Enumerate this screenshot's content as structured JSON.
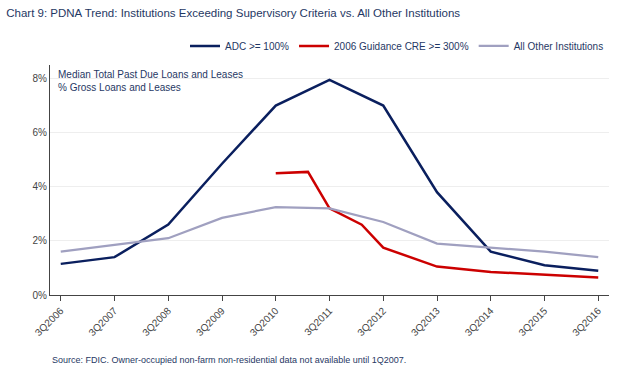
{
  "chart_data": {
    "type": "line",
    "title": "Chart 9: PDNA Trend: Institutions Exceeding Supervisory Criteria vs. All Other Institutions",
    "ylabel": [
      "Median Total Past Due Loans and Leases",
      "% Gross Loans and Leases"
    ],
    "annotations": [
      "Source: FDIC. Owner-occupied non-farm non-residential data not available until 1Q2007."
    ],
    "xlim": [
      -0.2,
      10.2
    ],
    "xticks": [
      {
        "value": 0,
        "label": "3Q2006"
      },
      {
        "value": 1,
        "label": "3Q2007"
      },
      {
        "value": 2,
        "label": "3Q2008"
      },
      {
        "value": 3,
        "label": "3Q2009"
      },
      {
        "value": 4,
        "label": "3Q2010"
      },
      {
        "value": 5,
        "label": "3Q2011"
      },
      {
        "value": 6,
        "label": "3Q2012"
      },
      {
        "value": 7,
        "label": "3Q2013"
      },
      {
        "value": 8,
        "label": "3Q2014"
      },
      {
        "value": 9,
        "label": "3Q2015"
      },
      {
        "value": 10,
        "label": "3Q2016"
      }
    ],
    "ylim": [
      0,
      8.5
    ],
    "yticks": [
      {
        "value": 0,
        "label": "0%"
      },
      {
        "value": 2,
        "label": "2%"
      },
      {
        "value": 4,
        "label": "4%"
      },
      {
        "value": 6,
        "label": "6%"
      },
      {
        "value": 8,
        "label": "8%"
      }
    ],
    "grid": true,
    "legend": "upper right",
    "series": [
      {
        "name": "ADC >= 100%",
        "color": "#0a1f5e",
        "x": [
          0,
          1,
          2,
          3,
          4,
          5,
          6,
          7,
          8,
          9,
          10
        ],
        "values": [
          1.15,
          1.4,
          2.6,
          4.85,
          7.0,
          7.95,
          7.0,
          3.8,
          1.6,
          1.1,
          0.9
        ]
      },
      {
        "name": "2006 Guidance CRE >= 300%",
        "color": "#cc0000",
        "x": [
          4,
          4.6,
          5,
          5.6,
          6,
          7,
          8,
          9,
          10
        ],
        "values": [
          4.5,
          4.55,
          3.2,
          2.6,
          1.75,
          1.05,
          0.85,
          0.75,
          0.65
        ]
      },
      {
        "name": "All Other Institutions",
        "color": "#a0a0c0",
        "x": [
          0,
          1,
          2,
          3,
          4,
          5,
          6,
          7,
          8,
          9,
          10
        ],
        "values": [
          1.6,
          1.85,
          2.1,
          2.85,
          3.25,
          3.2,
          2.7,
          1.9,
          1.75,
          1.6,
          1.4
        ]
      }
    ]
  }
}
